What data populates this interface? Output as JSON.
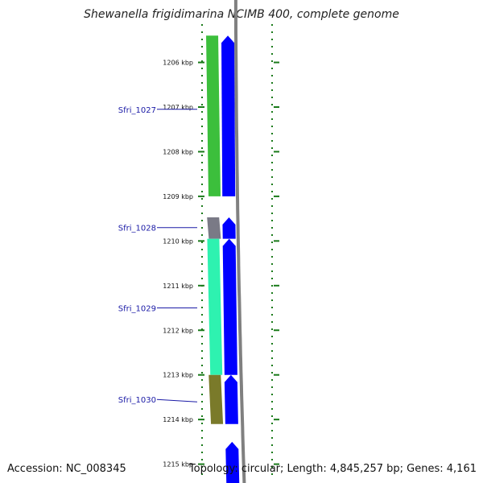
{
  "title": "Shewanella frigidimarina NCIMB 400, complete genome",
  "accession": "Accession: NC_008345",
  "summary": "Topology: circular; Length: 4,845,257 bp; Genes: 4,161",
  "colors": {
    "forward_strand": "#0000ff",
    "backbone": "#808080",
    "tick": "#1a7a1a",
    "gene_label": "#1a1aa6",
    "Sfri_1027": "#3cbf3c",
    "Sfri_1028": "#7a7a86",
    "Sfri_1029": "#2ef2b0",
    "Sfri_1030": "#7a7a2a"
  },
  "chart_data": {
    "type": "genome-map",
    "view": "linear-zoom",
    "units": "kbp",
    "range_kbp": [
      1205.45,
      1215.55
    ],
    "tick_labels": [
      {
        "kbp": 1206,
        "text": "1206 kbp"
      },
      {
        "kbp": 1207,
        "text": "1207 kbp"
      },
      {
        "kbp": 1208,
        "text": "1208 kbp"
      },
      {
        "kbp": 1209,
        "text": "1209 kbp"
      },
      {
        "kbp": 1210,
        "text": "1210 kbp"
      },
      {
        "kbp": 1211,
        "text": "1211 kbp"
      },
      {
        "kbp": 1212,
        "text": "1212 kbp"
      },
      {
        "kbp": 1213,
        "text": "1213 kbp"
      },
      {
        "kbp": 1214,
        "text": "1214 kbp"
      },
      {
        "kbp": 1215,
        "text": "1215 kbp"
      }
    ],
    "genes": [
      {
        "name": "Sfri_1027",
        "start_kbp": 1205.4,
        "end_kbp": 1209.0,
        "color_key": "Sfri_1027",
        "label_kbp": 1207.05
      },
      {
        "name": "Sfri_1028",
        "start_kbp": 1209.47,
        "end_kbp": 1209.95,
        "color_key": "Sfri_1028",
        "label_kbp": 1209.7
      },
      {
        "name": "Sfri_1029",
        "start_kbp": 1209.95,
        "end_kbp": 1213.0,
        "color_key": "Sfri_1029",
        "label_kbp": 1211.5
      },
      {
        "name": "Sfri_1030",
        "start_kbp": 1213.0,
        "end_kbp": 1214.1,
        "color_key": "Sfri_1030",
        "label_kbp": 1213.55
      }
    ],
    "forward_features": [
      {
        "start_kbp": 1205.4,
        "end_kbp": 1209.0
      },
      {
        "start_kbp": 1209.47,
        "end_kbp": 1209.95
      },
      {
        "start_kbp": 1209.95,
        "end_kbp": 1213.0
      },
      {
        "start_kbp": 1213.0,
        "end_kbp": 1214.1
      },
      {
        "start_kbp": 1214.5,
        "end_kbp": 1215.6
      }
    ]
  }
}
